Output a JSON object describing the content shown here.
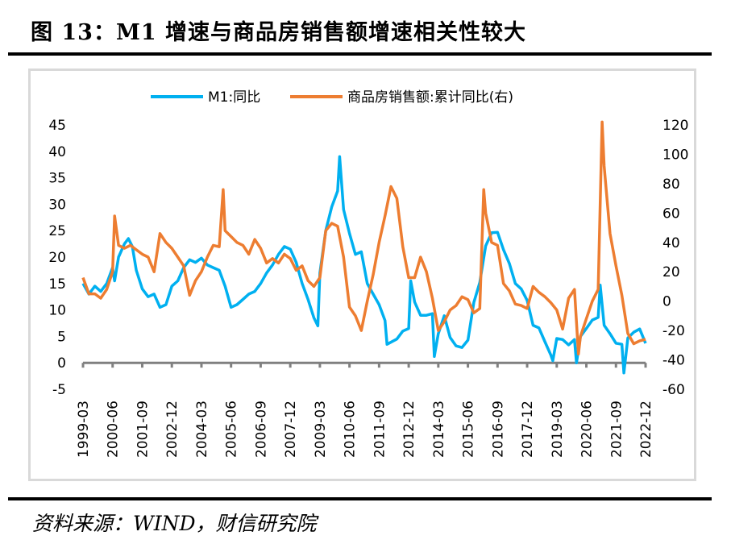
{
  "title": "图 13：M1 增速与商品房销售额增速相关性较大",
  "source": "资料来源：WIND，财信研究院",
  "chart_data": {
    "type": "line",
    "title": "M1增速与商品房销售额增速相关性较大",
    "x_tick_labels": [
      "1999-03",
      "2000-06",
      "2001-09",
      "2002-12",
      "2004-03",
      "2005-06",
      "2006-09",
      "2007-12",
      "2009-03",
      "2010-06",
      "2011-09",
      "2012-12",
      "2014-03",
      "2015-06",
      "2016-09",
      "2017-12",
      "2019-03",
      "2020-06",
      "2021-09",
      "2022-12"
    ],
    "y_left": {
      "ticks": [
        45,
        40,
        35,
        30,
        25,
        20,
        15,
        10,
        5,
        0,
        -5
      ],
      "range": [
        -5,
        45
      ]
    },
    "y_right": {
      "ticks": [
        120,
        100,
        80,
        60,
        40,
        20,
        0,
        -20,
        -40,
        -60
      ],
      "range": [
        -60,
        120
      ]
    },
    "legend_position": "top",
    "series": [
      {
        "name": "M1:同比",
        "axis": "left",
        "color": "#00b0f0",
        "points": [
          [
            "1999-03",
            15.0
          ],
          [
            "1999-06",
            13.0
          ],
          [
            "1999-09",
            14.5
          ],
          [
            "1999-12",
            13.5
          ],
          [
            "2000-03",
            15.0
          ],
          [
            "2000-06",
            18.0
          ],
          [
            "2000-07",
            15.5
          ],
          [
            "2000-09",
            20.0
          ],
          [
            "2000-12",
            22.5
          ],
          [
            "2001-02",
            23.5
          ],
          [
            "2001-04",
            22.0
          ],
          [
            "2001-06",
            17.5
          ],
          [
            "2001-09",
            14.0
          ],
          [
            "2001-12",
            12.5
          ],
          [
            "2002-03",
            13.0
          ],
          [
            "2002-06",
            10.5
          ],
          [
            "2002-09",
            11.0
          ],
          [
            "2002-12",
            14.5
          ],
          [
            "2003-03",
            15.5
          ],
          [
            "2003-06",
            18.0
          ],
          [
            "2003-09",
            19.5
          ],
          [
            "2003-12",
            19.0
          ],
          [
            "2004-03",
            19.8
          ],
          [
            "2004-06",
            18.5
          ],
          [
            "2004-09",
            18.0
          ],
          [
            "2004-12",
            17.5
          ],
          [
            "2005-03",
            14.5
          ],
          [
            "2005-06",
            10.5
          ],
          [
            "2005-09",
            11.0
          ],
          [
            "2005-12",
            12.0
          ],
          [
            "2006-03",
            13.0
          ],
          [
            "2006-06",
            13.5
          ],
          [
            "2006-09",
            15.0
          ],
          [
            "2006-12",
            17.0
          ],
          [
            "2007-03",
            18.5
          ],
          [
            "2007-06",
            20.5
          ],
          [
            "2007-09",
            22.0
          ],
          [
            "2007-12",
            21.5
          ],
          [
            "2008-03",
            19.0
          ],
          [
            "2008-06",
            15.0
          ],
          [
            "2008-09",
            12.0
          ],
          [
            "2008-12",
            8.5
          ],
          [
            "2009-02",
            7.0
          ],
          [
            "2009-03",
            17.0
          ],
          [
            "2009-06",
            25.0
          ],
          [
            "2009-09",
            29.5
          ],
          [
            "2009-12",
            32.5
          ],
          [
            "2010-01",
            39.0
          ],
          [
            "2010-03",
            29.0
          ],
          [
            "2010-06",
            24.5
          ],
          [
            "2010-09",
            20.5
          ],
          [
            "2010-12",
            21.0
          ],
          [
            "2011-03",
            15.0
          ],
          [
            "2011-06",
            13.0
          ],
          [
            "2011-09",
            11.0
          ],
          [
            "2011-12",
            8.0
          ],
          [
            "2012-01",
            3.5
          ],
          [
            "2012-06",
            4.5
          ],
          [
            "2012-09",
            6.0
          ],
          [
            "2012-12",
            6.5
          ],
          [
            "2013-01",
            15.5
          ],
          [
            "2013-03",
            11.5
          ],
          [
            "2013-06",
            9.0
          ],
          [
            "2013-09",
            9.0
          ],
          [
            "2013-12",
            9.3
          ],
          [
            "2014-01",
            1.2
          ],
          [
            "2014-03",
            5.5
          ],
          [
            "2014-06",
            8.9
          ],
          [
            "2014-09",
            4.8
          ],
          [
            "2014-12",
            3.2
          ],
          [
            "2015-03",
            2.9
          ],
          [
            "2015-06",
            4.3
          ],
          [
            "2015-09",
            11.4
          ],
          [
            "2015-12",
            15.2
          ],
          [
            "2016-03",
            22.1
          ],
          [
            "2016-06",
            24.6
          ],
          [
            "2016-09",
            24.7
          ],
          [
            "2016-12",
            21.4
          ],
          [
            "2017-03",
            18.8
          ],
          [
            "2017-06",
            15.0
          ],
          [
            "2017-09",
            14.0
          ],
          [
            "2017-12",
            11.8
          ],
          [
            "2018-03",
            7.1
          ],
          [
            "2018-06",
            6.6
          ],
          [
            "2018-09",
            4.0
          ],
          [
            "2018-12",
            1.5
          ],
          [
            "2019-01",
            0.4
          ],
          [
            "2019-03",
            4.6
          ],
          [
            "2019-06",
            4.4
          ],
          [
            "2019-09",
            3.4
          ],
          [
            "2019-12",
            4.4
          ],
          [
            "2020-01",
            0.0
          ],
          [
            "2020-03",
            5.0
          ],
          [
            "2020-06",
            6.5
          ],
          [
            "2020-09",
            8.1
          ],
          [
            "2020-12",
            8.6
          ],
          [
            "2021-01",
            14.7
          ],
          [
            "2021-03",
            7.1
          ],
          [
            "2021-06",
            5.5
          ],
          [
            "2021-09",
            3.7
          ],
          [
            "2021-12",
            3.5
          ],
          [
            "2022-01",
            -1.9
          ],
          [
            "2022-03",
            4.7
          ],
          [
            "2022-06",
            5.8
          ],
          [
            "2022-09",
            6.4
          ],
          [
            "2022-12",
            3.7
          ]
        ]
      },
      {
        "name": "商品房销售额:累计同比(右)",
        "axis": "right",
        "color": "#ed7d31",
        "points": [
          [
            "1999-03",
            16
          ],
          [
            "1999-06",
            5
          ],
          [
            "1999-09",
            5
          ],
          [
            "1999-12",
            2
          ],
          [
            "2000-03",
            8
          ],
          [
            "2000-06",
            20
          ],
          [
            "2000-07",
            58
          ],
          [
            "2000-09",
            38
          ],
          [
            "2000-12",
            36
          ],
          [
            "2001-03",
            38
          ],
          [
            "2001-06",
            35
          ],
          [
            "2001-09",
            32
          ],
          [
            "2001-12",
            30
          ],
          [
            "2002-03",
            20
          ],
          [
            "2002-06",
            46
          ],
          [
            "2002-09",
            40
          ],
          [
            "2002-12",
            36
          ],
          [
            "2003-03",
            30
          ],
          [
            "2003-06",
            24
          ],
          [
            "2003-09",
            4
          ],
          [
            "2003-12",
            14
          ],
          [
            "2004-03",
            20
          ],
          [
            "2004-06",
            30
          ],
          [
            "2004-09",
            38
          ],
          [
            "2004-12",
            37
          ],
          [
            "2005-02",
            76
          ],
          [
            "2005-03",
            48
          ],
          [
            "2005-06",
            44
          ],
          [
            "2005-09",
            40
          ],
          [
            "2005-12",
            38
          ],
          [
            "2006-03",
            32
          ],
          [
            "2006-06",
            42
          ],
          [
            "2006-09",
            36
          ],
          [
            "2006-12",
            26
          ],
          [
            "2007-03",
            29
          ],
          [
            "2007-06",
            26
          ],
          [
            "2007-09",
            32
          ],
          [
            "2007-12",
            29
          ],
          [
            "2008-03",
            21
          ],
          [
            "2008-06",
            24
          ],
          [
            "2008-09",
            14
          ],
          [
            "2008-12",
            10
          ],
          [
            "2009-03",
            16
          ],
          [
            "2009-06",
            48
          ],
          [
            "2009-09",
            53
          ],
          [
            "2009-12",
            51
          ],
          [
            "2010-03",
            30
          ],
          [
            "2010-06",
            -4
          ],
          [
            "2010-09",
            -10
          ],
          [
            "2010-12",
            -20
          ],
          [
            "2011-03",
            0
          ],
          [
            "2011-06",
            18
          ],
          [
            "2011-09",
            40
          ],
          [
            "2011-12",
            58
          ],
          [
            "2012-03",
            78
          ],
          [
            "2012-06",
            70
          ],
          [
            "2012-09",
            37
          ],
          [
            "2012-12",
            16
          ],
          [
            "2013-03",
            16
          ],
          [
            "2013-06",
            30
          ],
          [
            "2013-09",
            20
          ],
          [
            "2013-12",
            2
          ],
          [
            "2014-03",
            -20
          ],
          [
            "2014-06",
            -14
          ],
          [
            "2014-09",
            -6
          ],
          [
            "2014-12",
            -3
          ],
          [
            "2015-03",
            3
          ],
          [
            "2015-06",
            1
          ],
          [
            "2015-09",
            -8
          ],
          [
            "2015-12",
            -5
          ],
          [
            "2016-02",
            76
          ],
          [
            "2016-03",
            60
          ],
          [
            "2016-06",
            40
          ],
          [
            "2016-09",
            38
          ],
          [
            "2016-12",
            12
          ],
          [
            "2017-03",
            7
          ],
          [
            "2017-06",
            -2
          ],
          [
            "2017-09",
            -3
          ],
          [
            "2017-12",
            -5
          ],
          [
            "2018-03",
            10
          ],
          [
            "2018-06",
            6
          ],
          [
            "2018-09",
            3
          ],
          [
            "2018-12",
            -1
          ],
          [
            "2019-03",
            -6
          ],
          [
            "2019-06",
            -19
          ],
          [
            "2019-09",
            2
          ],
          [
            "2019-12",
            8
          ],
          [
            "2020-02",
            -36
          ],
          [
            "2020-03",
            -24
          ],
          [
            "2020-06",
            -12
          ],
          [
            "2020-09",
            0
          ],
          [
            "2020-12",
            8
          ],
          [
            "2021-02",
            122
          ],
          [
            "2021-03",
            92
          ],
          [
            "2021-06",
            46
          ],
          [
            "2021-09",
            24
          ],
          [
            "2021-12",
            4
          ],
          [
            "2022-03",
            -22
          ],
          [
            "2022-06",
            -29
          ],
          [
            "2022-09",
            -27
          ],
          [
            "2022-12",
            -26
          ]
        ]
      }
    ]
  }
}
